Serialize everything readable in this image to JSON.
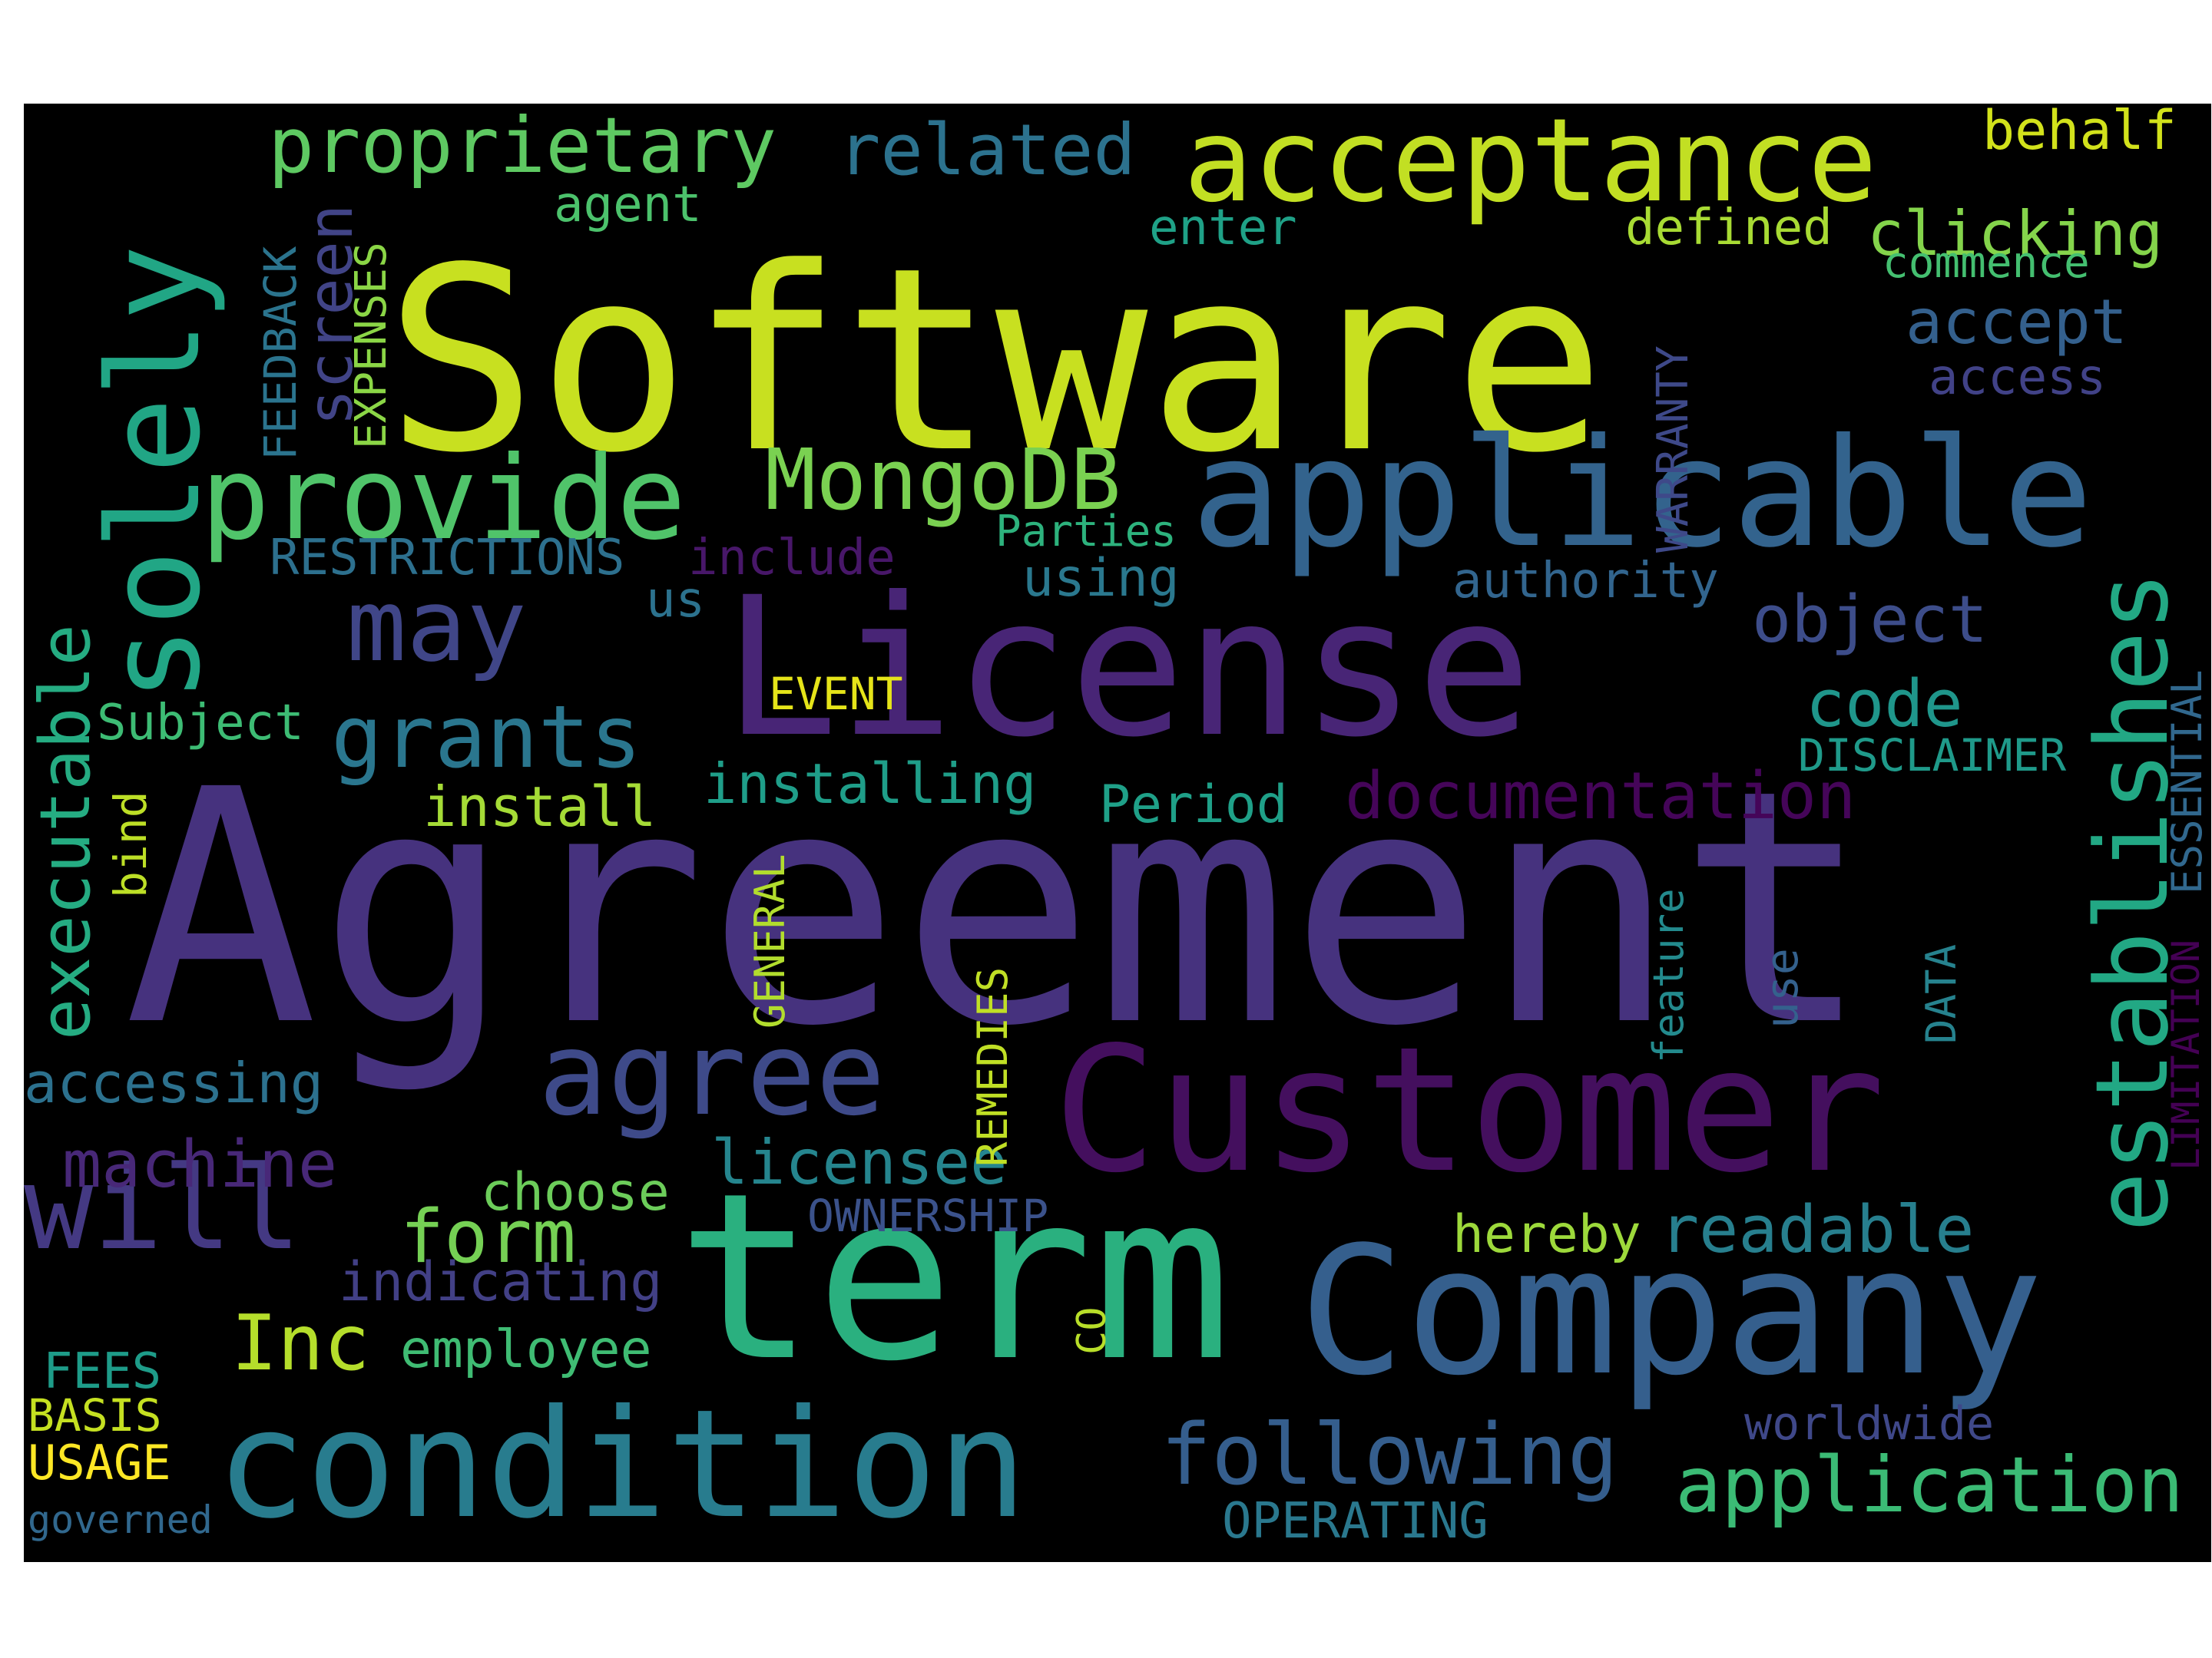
{
  "background": "#000000",
  "page_background": "#ffffff",
  "words": [
    {
      "text": "Agreement",
      "color": "#46327e"
    },
    {
      "text": "Software",
      "color": "#c8e020"
    },
    {
      "text": "License",
      "color": "#482576"
    },
    {
      "text": "term",
      "color": "#2ab07f"
    },
    {
      "text": "Company",
      "color": "#355f8d"
    },
    {
      "text": "Customer",
      "color": "#440f5e"
    },
    {
      "text": "applicable",
      "color": "#33638d"
    },
    {
      "text": "condition",
      "color": "#287c8e"
    },
    {
      "text": "solely",
      "color": "#21a685"
    },
    {
      "text": "acceptance",
      "color": "#c2df23"
    },
    {
      "text": "provide",
      "color": "#50c46a"
    },
    {
      "text": "establishes",
      "color": "#22a884"
    },
    {
      "text": "agree",
      "color": "#3e4a89"
    },
    {
      "text": "will",
      "color": "#443983"
    },
    {
      "text": "may",
      "color": "#404688"
    },
    {
      "text": "grants",
      "color": "#2a768e"
    },
    {
      "text": "MongoDB",
      "color": "#7ad151"
    },
    {
      "text": "proprietary",
      "color": "#5ec962"
    },
    {
      "text": "related",
      "color": "#2c728e"
    },
    {
      "text": "following",
      "color": "#355e8d"
    },
    {
      "text": "application",
      "color": "#3bbb75"
    },
    {
      "text": "executable",
      "color": "#25ac82"
    },
    {
      "text": "Inc",
      "color": "#b5de2b"
    },
    {
      "text": "machine",
      "color": "#482878"
    },
    {
      "text": "documentation",
      "color": "#450559"
    },
    {
      "text": "readable",
      "color": "#277f8e"
    },
    {
      "text": "licensee",
      "color": "#25858e"
    },
    {
      "text": "form",
      "color": "#75d054"
    },
    {
      "text": "object",
      "color": "#3d4d8a"
    },
    {
      "text": "code",
      "color": "#1f968b"
    },
    {
      "text": "clicking",
      "color": "#84d44b"
    },
    {
      "text": "accept",
      "color": "#34608d"
    },
    {
      "text": "screen",
      "color": "#414487"
    },
    {
      "text": "behalf",
      "color": "#d2e21b"
    },
    {
      "text": "installing",
      "color": "#1f9e89"
    },
    {
      "text": "install",
      "color": "#a5db36"
    },
    {
      "text": "accessing",
      "color": "#2c718e"
    },
    {
      "text": "choose",
      "color": "#6ccd5a"
    },
    {
      "text": "hereby",
      "color": "#9dd93b"
    },
    {
      "text": "indicating",
      "color": "#424086"
    },
    {
      "text": "employee",
      "color": "#3fbc73"
    },
    {
      "text": "worldwide",
      "color": "#3f4889"
    },
    {
      "text": "Period",
      "color": "#1fa088"
    },
    {
      "text": "using",
      "color": "#2a788e"
    },
    {
      "text": "authority",
      "color": "#32658e"
    },
    {
      "text": "Subject",
      "color": "#3dbc74"
    },
    {
      "text": "agent",
      "color": "#4cc26c"
    },
    {
      "text": "enter",
      "color": "#1fa187"
    },
    {
      "text": "defined",
      "color": "#a8db34"
    },
    {
      "text": "commence",
      "color": "#44bf70"
    },
    {
      "text": "access",
      "color": "#414287"
    },
    {
      "text": "Parties",
      "color": "#2db27d"
    },
    {
      "text": "include",
      "color": "#481769"
    },
    {
      "text": "us",
      "color": "#2c728e"
    },
    {
      "text": "RESTRICTIONS",
      "color": "#2d708e"
    },
    {
      "text": "EVENT",
      "color": "#e5e419"
    },
    {
      "text": "DISCLAIMER",
      "color": "#1f9a8a"
    },
    {
      "text": "OWNERSHIP",
      "color": "#3b528b"
    },
    {
      "text": "FEES",
      "color": "#1e9c89"
    },
    {
      "text": "BASIS",
      "color": "#c5e021"
    },
    {
      "text": "USAGE",
      "color": "#fde725"
    },
    {
      "text": "governed",
      "color": "#31688e"
    },
    {
      "text": "OPERATING",
      "color": "#2a788e"
    },
    {
      "text": "FEEDBACK",
      "color": "#2b748e"
    },
    {
      "text": "EXPENSES",
      "color": "#8bd646"
    },
    {
      "text": "WARRANTY",
      "color": "#3e4989"
    },
    {
      "text": "ESSENTIAL",
      "color": "#31688e"
    },
    {
      "text": "LIMITATION",
      "color": "#440154"
    },
    {
      "text": "bind",
      "color": "#bddf26"
    },
    {
      "text": "GENERAL",
      "color": "#b2dd2d"
    },
    {
      "text": "REMEDIES",
      "color": "#c0df25"
    },
    {
      "text": "CO",
      "color": "#b8de29"
    },
    {
      "text": "feature",
      "color": "#238a8d"
    },
    {
      "text": "use",
      "color": "#34618d"
    },
    {
      "text": "DATA",
      "color": "#26828e"
    }
  ]
}
